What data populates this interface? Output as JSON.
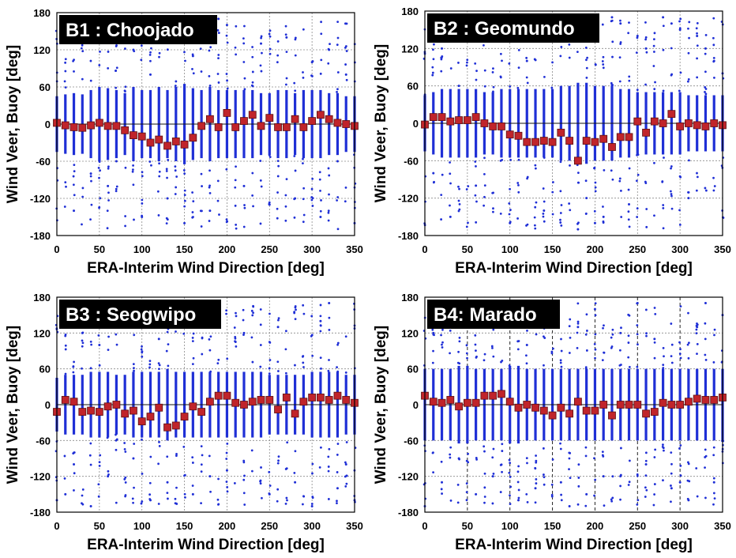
{
  "chart_data": [
    {
      "type": "scatter",
      "title": "B1 : Choojado",
      "xlabel": "ERA-Interim Wind Direction [deg]",
      "ylabel": "Wind Veer, Buoy [deg]",
      "xlim": [
        0,
        350
      ],
      "ylim": [
        -180,
        180
      ],
      "xticks": [
        0,
        50,
        100,
        150,
        200,
        250,
        300,
        350
      ],
      "yticks": [
        -180,
        -120,
        -60,
        0,
        60,
        120,
        180
      ],
      "grid": true,
      "series": [
        {
          "style": "blue-dots",
          "color": "#1f2fd6",
          "x": [
            0,
            10,
            20,
            30,
            40,
            50,
            60,
            70,
            80,
            90,
            100,
            110,
            120,
            130,
            140,
            150,
            160,
            170,
            180,
            190,
            200,
            210,
            220,
            230,
            240,
            250,
            260,
            270,
            280,
            290,
            300,
            310,
            320,
            330,
            340,
            350
          ],
          "spread": [
            45,
            48,
            50,
            48,
            55,
            60,
            58,
            55,
            50,
            60,
            55,
            55,
            60,
            55,
            60,
            65,
            58,
            55,
            60,
            55,
            55,
            55,
            55,
            55,
            50,
            50,
            55,
            55,
            50,
            55,
            55,
            55,
            50,
            50,
            45,
            45
          ]
        },
        {
          "style": "red-squares",
          "color": "#c0242b",
          "x": [
            0,
            10,
            20,
            30,
            40,
            50,
            60,
            70,
            80,
            90,
            100,
            110,
            120,
            130,
            140,
            150,
            160,
            170,
            180,
            190,
            200,
            210,
            220,
            230,
            240,
            250,
            260,
            270,
            280,
            290,
            300,
            310,
            320,
            330,
            340,
            350
          ],
          "y": [
            2,
            -2,
            -5,
            -6,
            -2,
            2,
            -3,
            -3,
            -10,
            -18,
            -20,
            -30,
            -25,
            -35,
            -28,
            -33,
            -22,
            -3,
            8,
            -5,
            18,
            -5,
            5,
            15,
            -3,
            10,
            -5,
            -5,
            8,
            -5,
            5,
            15,
            8,
            2,
            0,
            -3
          ]
        }
      ],
      "outliers": [
        [
          60,
          -100
        ],
        [
          70,
          -60
        ],
        [
          90,
          120
        ],
        [
          100,
          -150
        ],
        [
          110,
          80
        ],
        [
          120,
          150
        ],
        [
          130,
          -120
        ],
        [
          150,
          -160
        ],
        [
          160,
          110
        ],
        [
          180,
          -140
        ],
        [
          190,
          170
        ],
        [
          200,
          160
        ],
        [
          220,
          -100
        ],
        [
          240,
          130
        ],
        [
          250,
          -130
        ],
        [
          270,
          140
        ],
        [
          280,
          -120
        ],
        [
          300,
          100
        ],
        [
          310,
          -150
        ],
        [
          320,
          120
        ],
        [
          330,
          -60
        ],
        [
          340,
          80
        ],
        [
          350,
          -160
        ],
        [
          20,
          -140
        ],
        [
          30,
          130
        ],
        [
          40,
          -80
        ]
      ]
    },
    {
      "type": "scatter",
      "title": "B2 : Geomundo",
      "xlabel": "ERA-Interim Wind Direction [deg]",
      "ylabel": "Wind Veer, Buoy [deg]",
      "xlim": [
        0,
        350
      ],
      "ylim": [
        -180,
        180
      ],
      "xticks": [
        0,
        50,
        100,
        150,
        200,
        250,
        300,
        350
      ],
      "yticks": [
        -180,
        -120,
        -60,
        0,
        60,
        120,
        180
      ],
      "grid": true,
      "series": [
        {
          "style": "blue-dots",
          "color": "#1f2fd6",
          "x": [
            0,
            10,
            20,
            30,
            40,
            50,
            60,
            70,
            80,
            90,
            100,
            110,
            120,
            130,
            140,
            150,
            160,
            170,
            180,
            190,
            200,
            210,
            220,
            230,
            240,
            250,
            260,
            270,
            280,
            290,
            300,
            310,
            320,
            330,
            340,
            350
          ],
          "spread": [
            45,
            50,
            55,
            55,
            55,
            55,
            55,
            50,
            50,
            55,
            55,
            55,
            55,
            55,
            55,
            55,
            60,
            60,
            65,
            65,
            60,
            60,
            60,
            55,
            55,
            50,
            50,
            50,
            50,
            50,
            50,
            45,
            45,
            45,
            45,
            45
          ]
        },
        {
          "style": "red-squares",
          "color": "#c0242b",
          "x": [
            0,
            10,
            20,
            30,
            40,
            50,
            60,
            70,
            80,
            90,
            100,
            110,
            120,
            130,
            140,
            150,
            160,
            170,
            180,
            190,
            200,
            210,
            220,
            230,
            240,
            250,
            260,
            270,
            280,
            290,
            300,
            310,
            320,
            330,
            340,
            350
          ],
          "y": [
            -2,
            10,
            10,
            3,
            5,
            5,
            10,
            0,
            -5,
            -5,
            -18,
            -20,
            -30,
            -30,
            -28,
            -30,
            -15,
            -28,
            -60,
            -28,
            -30,
            -25,
            -38,
            -22,
            -22,
            3,
            -15,
            3,
            0,
            15,
            -5,
            0,
            -3,
            -5,
            0,
            -3
          ]
        }
      ],
      "outliers": [
        [
          10,
          -80
        ],
        [
          20,
          120
        ],
        [
          30,
          -150
        ],
        [
          40,
          60
        ],
        [
          60,
          -100
        ],
        [
          80,
          140
        ],
        [
          100,
          -160
        ],
        [
          120,
          100
        ],
        [
          140,
          -140
        ],
        [
          160,
          150
        ],
        [
          180,
          -170
        ],
        [
          190,
          -120
        ],
        [
          200,
          -160
        ],
        [
          210,
          -150
        ],
        [
          220,
          170
        ],
        [
          230,
          160
        ],
        [
          240,
          -130
        ],
        [
          250,
          140
        ],
        [
          260,
          120
        ],
        [
          280,
          170
        ],
        [
          290,
          160
        ],
        [
          300,
          150
        ],
        [
          310,
          -120
        ],
        [
          320,
          140
        ],
        [
          330,
          120
        ],
        [
          340,
          100
        ],
        [
          350,
          80
        ]
      ]
    },
    {
      "type": "scatter",
      "title": "B3 : Seogwipo",
      "xlabel": "ERA-Interim Wind Direction [deg]",
      "ylabel": "Wind Veer, Buoy [deg]",
      "xlim": [
        0,
        350
      ],
      "ylim": [
        -180,
        180
      ],
      "xticks": [
        0,
        50,
        100,
        150,
        200,
        250,
        300,
        350
      ],
      "yticks": [
        -180,
        -120,
        -60,
        0,
        60,
        120,
        180
      ],
      "grid": true,
      "series": [
        {
          "style": "blue-dots",
          "color": "#1f2fd6",
          "x": [
            0,
            10,
            20,
            30,
            40,
            50,
            60,
            70,
            80,
            90,
            100,
            110,
            120,
            130,
            140,
            150,
            160,
            170,
            180,
            190,
            200,
            210,
            220,
            230,
            240,
            250,
            260,
            270,
            280,
            290,
            300,
            310,
            320,
            330,
            340,
            350
          ],
          "spread": [
            45,
            50,
            50,
            50,
            55,
            55,
            55,
            50,
            50,
            55,
            55,
            55,
            55,
            60,
            55,
            55,
            55,
            55,
            55,
            55,
            55,
            55,
            55,
            55,
            55,
            50,
            50,
            50,
            50,
            50,
            55,
            55,
            55,
            55,
            50,
            50
          ]
        },
        {
          "style": "red-squares",
          "color": "#c0242b",
          "x": [
            0,
            10,
            20,
            30,
            40,
            50,
            60,
            70,
            80,
            90,
            100,
            110,
            120,
            130,
            140,
            150,
            160,
            170,
            180,
            190,
            200,
            210,
            220,
            230,
            240,
            250,
            260,
            270,
            280,
            290,
            300,
            310,
            320,
            330,
            340,
            350
          ],
          "y": [
            -12,
            8,
            5,
            -12,
            -10,
            -12,
            -3,
            0,
            -15,
            -10,
            -28,
            -20,
            -5,
            -38,
            -35,
            -20,
            -3,
            -12,
            5,
            15,
            15,
            3,
            0,
            5,
            8,
            8,
            -8,
            12,
            -15,
            5,
            12,
            12,
            8,
            15,
            8,
            3
          ]
        }
      ],
      "outliers": [
        [
          0,
          -160
        ],
        [
          10,
          -150
        ],
        [
          20,
          -100
        ],
        [
          30,
          120
        ],
        [
          40,
          -170
        ],
        [
          50,
          100
        ],
        [
          60,
          -120
        ],
        [
          80,
          130
        ],
        [
          90,
          -90
        ],
        [
          100,
          150
        ],
        [
          110,
          -160
        ],
        [
          120,
          110
        ],
        [
          130,
          -130
        ],
        [
          150,
          160
        ],
        [
          160,
          -150
        ],
        [
          180,
          -120
        ],
        [
          190,
          140
        ],
        [
          200,
          -110
        ],
        [
          220,
          120
        ],
        [
          250,
          -150
        ],
        [
          260,
          130
        ],
        [
          280,
          -130
        ],
        [
          300,
          -170
        ],
        [
          310,
          140
        ],
        [
          320,
          170
        ],
        [
          330,
          -140
        ],
        [
          340,
          -100
        ],
        [
          350,
          -160
        ]
      ]
    },
    {
      "type": "scatter",
      "title": "B4: Marado",
      "xlabel": "ERA-Interim Wind Direction [deg]",
      "ylabel": "Wind Veer, Buoy [deg]",
      "xlim": [
        0,
        350
      ],
      "ylim": [
        -180,
        180
      ],
      "xticks": [
        0,
        50,
        100,
        150,
        200,
        250,
        300,
        350
      ],
      "yticks": [
        -180,
        -120,
        -60,
        0,
        60,
        120,
        180
      ],
      "grid": true,
      "series": [
        {
          "style": "blue-dots",
          "color": "#1f2fd6",
          "x": [
            0,
            10,
            20,
            30,
            40,
            50,
            60,
            70,
            80,
            90,
            100,
            110,
            120,
            130,
            140,
            150,
            160,
            170,
            180,
            190,
            200,
            210,
            220,
            230,
            240,
            250,
            260,
            270,
            280,
            290,
            300,
            310,
            320,
            330,
            340,
            350
          ],
          "spread": [
            60,
            60,
            60,
            60,
            65,
            65,
            60,
            60,
            60,
            60,
            65,
            65,
            60,
            60,
            60,
            60,
            60,
            60,
            60,
            60,
            60,
            60,
            60,
            60,
            60,
            60,
            60,
            60,
            60,
            60,
            60,
            60,
            60,
            60,
            60,
            60
          ]
        },
        {
          "style": "red-squares",
          "color": "#c0242b",
          "x": [
            0,
            10,
            20,
            30,
            40,
            50,
            60,
            70,
            80,
            90,
            100,
            110,
            120,
            130,
            140,
            150,
            160,
            170,
            180,
            190,
            200,
            210,
            220,
            230,
            240,
            250,
            260,
            270,
            280,
            290,
            300,
            310,
            320,
            330,
            340,
            350
          ],
          "y": [
            15,
            5,
            3,
            8,
            -3,
            3,
            3,
            15,
            15,
            18,
            5,
            -5,
            0,
            -5,
            -10,
            -18,
            -5,
            -15,
            5,
            -10,
            -10,
            0,
            -18,
            0,
            0,
            0,
            -15,
            -12,
            3,
            0,
            0,
            5,
            10,
            8,
            8,
            12
          ]
        }
      ],
      "outliers": [
        [
          0,
          -170
        ],
        [
          10,
          120
        ],
        [
          20,
          -130
        ],
        [
          30,
          150
        ],
        [
          40,
          -90
        ],
        [
          60,
          -150
        ],
        [
          70,
          130
        ],
        [
          80,
          -120
        ],
        [
          90,
          140
        ],
        [
          110,
          -160
        ],
        [
          120,
          100
        ],
        [
          130,
          -140
        ],
        [
          150,
          150
        ],
        [
          160,
          -130
        ],
        [
          170,
          -170
        ],
        [
          180,
          130
        ],
        [
          190,
          -150
        ],
        [
          200,
          160
        ],
        [
          210,
          -120
        ],
        [
          230,
          120
        ],
        [
          250,
          170
        ],
        [
          260,
          -100
        ],
        [
          270,
          110
        ],
        [
          290,
          -140
        ],
        [
          300,
          -130
        ],
        [
          310,
          -160
        ],
        [
          320,
          130
        ],
        [
          330,
          170
        ],
        [
          340,
          -130
        ],
        [
          350,
          150
        ]
      ]
    }
  ]
}
